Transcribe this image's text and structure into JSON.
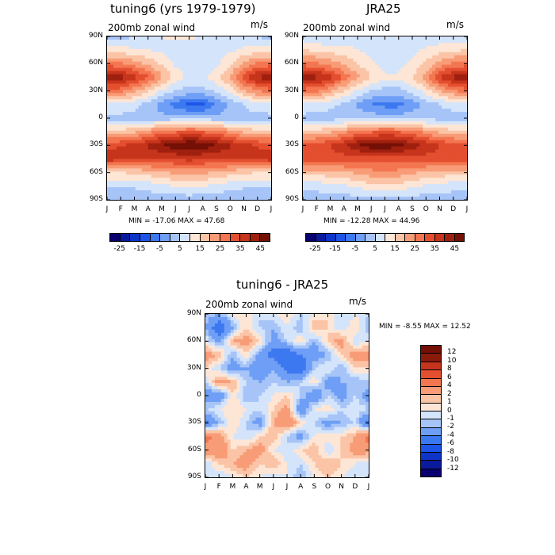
{
  "chart_data": [
    {
      "type": "heatmap",
      "title": "tuning6 (yrs 1979-1979)",
      "subtitle": "200mb zonal wind",
      "units": "m/s",
      "stats": "MIN = -17.06  MAX =  47.68",
      "min": -17.06,
      "max": 47.68,
      "x_ticks": [
        "J",
        "F",
        "M",
        "A",
        "M",
        "J",
        "J",
        "A",
        "S",
        "O",
        "N",
        "D",
        "J"
      ],
      "y_ticks": [
        "90N",
        "60N",
        "30N",
        "0",
        "30S",
        "60S",
        "90S"
      ],
      "colorbar_labels": [
        "-25",
        "-15",
        "-5",
        "5",
        "15",
        "25",
        "35",
        "45"
      ],
      "levels": [
        -30,
        -25,
        -20,
        -15,
        -10,
        -5,
        0,
        5,
        10,
        15,
        20,
        25,
        30,
        35,
        40,
        45
      ],
      "rows_north_to_south": [
        [
          -3,
          -2,
          0,
          2,
          5,
          6,
          6,
          5,
          4,
          3,
          2,
          0,
          -3
        ],
        [
          8,
          7,
          6,
          5,
          4,
          2,
          0,
          0,
          2,
          4,
          6,
          7,
          8
        ],
        [
          22,
          21,
          18,
          14,
          9,
          4,
          1,
          1,
          4,
          9,
          16,
          21,
          22
        ],
        [
          40,
          38,
          32,
          26,
          16,
          8,
          4,
          4,
          8,
          16,
          28,
          36,
          40
        ],
        [
          22,
          22,
          16,
          11,
          4,
          0,
          -2,
          -2,
          1,
          6,
          14,
          20,
          22
        ],
        [
          4,
          4,
          2,
          -2,
          -8,
          -12,
          -16,
          -16,
          -10,
          -4,
          0,
          3,
          4
        ],
        [
          -2,
          -2,
          -2,
          -3,
          -3,
          -3,
          -3,
          -3,
          -3,
          -3,
          -2,
          -2,
          -2
        ],
        [
          12,
          12,
          14,
          18,
          22,
          24,
          26,
          25,
          22,
          18,
          14,
          12,
          12
        ],
        [
          28,
          30,
          32,
          36,
          40,
          44,
          46,
          44,
          40,
          36,
          32,
          30,
          28
        ],
        [
          33,
          32,
          30,
          30,
          30,
          30,
          32,
          30,
          30,
          30,
          30,
          31,
          33
        ],
        [
          10,
          10,
          11,
          12,
          14,
          16,
          17,
          16,
          14,
          12,
          11,
          10,
          10
        ],
        [
          0,
          0,
          1,
          2,
          4,
          5,
          6,
          5,
          4,
          2,
          1,
          0,
          0
        ],
        [
          -5,
          -5,
          -4,
          -4,
          -3,
          -3,
          -3,
          -3,
          -4,
          -4,
          -5,
          -5,
          -5
        ]
      ]
    },
    {
      "type": "heatmap",
      "title": "JRA25",
      "subtitle": "200mb zonal wind",
      "units": "m/s",
      "stats": "MIN = -12.28  MAX =  44.96",
      "min": -12.28,
      "max": 44.96,
      "x_ticks": [
        "J",
        "F",
        "M",
        "A",
        "M",
        "J",
        "J",
        "A",
        "S",
        "O",
        "N",
        "D",
        "J"
      ],
      "y_ticks": [
        "90N",
        "60N",
        "30N",
        "0",
        "30S",
        "60S",
        "90S"
      ],
      "colorbar_labels": [
        "-25",
        "-15",
        "-5",
        "5",
        "15",
        "25",
        "35",
        "45"
      ],
      "levels": [
        -30,
        -25,
        -20,
        -15,
        -10,
        -5,
        0,
        5,
        10,
        15,
        20,
        25,
        30,
        35,
        40,
        45
      ],
      "rows_north_to_south": [
        [
          0,
          0,
          0,
          1,
          3,
          4,
          4,
          4,
          3,
          2,
          1,
          0,
          0
        ],
        [
          10,
          9,
          8,
          7,
          5,
          3,
          2,
          2,
          3,
          6,
          8,
          9,
          10
        ],
        [
          22,
          21,
          18,
          14,
          10,
          6,
          3,
          3,
          6,
          11,
          17,
          21,
          22
        ],
        [
          40,
          37,
          32,
          24,
          16,
          10,
          6,
          6,
          10,
          18,
          30,
          37,
          40
        ],
        [
          22,
          21,
          16,
          10,
          4,
          0,
          -2,
          -2,
          2,
          7,
          15,
          20,
          22
        ],
        [
          4,
          3,
          1,
          -1,
          -6,
          -10,
          -12,
          -12,
          -8,
          -3,
          0,
          2,
          4
        ],
        [
          -2,
          -2,
          -2,
          -2,
          -2,
          -2,
          -2,
          -2,
          -2,
          -2,
          -2,
          -2,
          -2
        ],
        [
          12,
          12,
          14,
          18,
          22,
          24,
          26,
          25,
          22,
          18,
          14,
          12,
          12
        ],
        [
          26,
          28,
          30,
          34,
          40,
          43,
          44,
          42,
          38,
          34,
          30,
          28,
          26
        ],
        [
          28,
          28,
          28,
          28,
          28,
          28,
          28,
          28,
          28,
          28,
          28,
          28,
          28
        ],
        [
          12,
          12,
          13,
          14,
          16,
          18,
          19,
          18,
          16,
          14,
          13,
          12,
          12
        ],
        [
          2,
          2,
          3,
          4,
          6,
          8,
          9,
          8,
          6,
          4,
          3,
          2,
          2
        ],
        [
          -3,
          -3,
          -3,
          -3,
          -2,
          -2,
          -2,
          -2,
          -2,
          -3,
          -3,
          -3,
          -3
        ]
      ]
    },
    {
      "type": "heatmap",
      "title": "tuning6 - JRA25",
      "subtitle": "200mb zonal wind",
      "units": "m/s",
      "stats": "MIN =   -8.55  MAX =   12.52",
      "min": -8.55,
      "max": 12.52,
      "x_ticks": [
        "J",
        "F",
        "M",
        "A",
        "M",
        "J",
        "J",
        "A",
        "S",
        "O",
        "N",
        "D",
        "J"
      ],
      "y_ticks": [
        "90N",
        "60N",
        "30N",
        "0",
        "30S",
        "60S",
        "90S"
      ],
      "colorbar_labels": [
        "12",
        "10",
        "8",
        "6",
        "4",
        "2",
        "1",
        "0",
        "-1",
        "-2",
        "-4",
        "-6",
        "-8",
        "-10",
        "-12"
      ],
      "levels": [
        -12,
        -10,
        -8,
        -6,
        -4,
        -2,
        -1,
        0,
        1,
        2,
        4,
        6,
        8,
        10,
        12
      ],
      "rows_north_to_south": [
        [
          -1,
          -2,
          0,
          1,
          -1,
          0,
          1,
          -1,
          0,
          1,
          -1,
          0,
          -1
        ],
        [
          -2,
          -6,
          -2,
          1,
          -1,
          -2,
          0,
          -2,
          2,
          1,
          -1,
          1,
          -2
        ],
        [
          0,
          -3,
          2,
          3,
          1,
          -3,
          -1,
          1,
          -2,
          1,
          3,
          -1,
          0
        ],
        [
          3,
          2,
          -2,
          1,
          -3,
          -5,
          -6,
          -4,
          -3,
          -2,
          1,
          3,
          3
        ],
        [
          1,
          -1,
          -3,
          -2,
          -4,
          -2,
          -5,
          -6,
          -1,
          0,
          -2,
          1,
          1
        ],
        [
          -1,
          3,
          2,
          -1,
          -2,
          -1,
          -2,
          -1,
          1,
          -3,
          -2,
          -2,
          -1
        ],
        [
          -3,
          -4,
          1,
          -2,
          -1,
          0,
          1,
          -1,
          -4,
          -1,
          -3,
          -1,
          -3
        ],
        [
          -1,
          0,
          1,
          0,
          -1,
          1,
          3,
          -4,
          0,
          1,
          -1,
          0,
          -1
        ],
        [
          -5,
          -2,
          1,
          -1,
          -3,
          2,
          4,
          1,
          -1,
          -3,
          -2,
          -1,
          -5
        ],
        [
          5,
          3,
          0,
          -1,
          1,
          2,
          -1,
          -3,
          0,
          1,
          1,
          2,
          5
        ],
        [
          3,
          4,
          1,
          2,
          3,
          0,
          -1,
          1,
          2,
          -1,
          1,
          3,
          3
        ],
        [
          -1,
          1,
          2,
          3,
          1,
          2,
          0,
          -1,
          1,
          2,
          1,
          0,
          -1
        ],
        [
          0,
          -1,
          0,
          1,
          0,
          -1,
          0,
          -2,
          0,
          1,
          0,
          -1,
          0
        ]
      ]
    }
  ]
}
